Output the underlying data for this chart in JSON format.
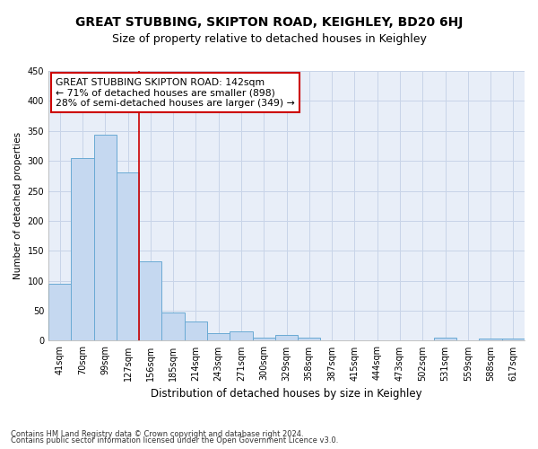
{
  "title": "GREAT STUBBING, SKIPTON ROAD, KEIGHLEY, BD20 6HJ",
  "subtitle": "Size of property relative to detached houses in Keighley",
  "xlabel": "Distribution of detached houses by size in Keighley",
  "ylabel": "Number of detached properties",
  "footer_line1": "Contains HM Land Registry data © Crown copyright and database right 2024.",
  "footer_line2": "Contains public sector information licensed under the Open Government Licence v3.0.",
  "bar_labels": [
    "41sqm",
    "70sqm",
    "99sqm",
    "127sqm",
    "156sqm",
    "185sqm",
    "214sqm",
    "243sqm",
    "271sqm",
    "300sqm",
    "329sqm",
    "358sqm",
    "387sqm",
    "415sqm",
    "444sqm",
    "473sqm",
    "502sqm",
    "531sqm",
    "559sqm",
    "588sqm",
    "617sqm"
  ],
  "bar_values": [
    95,
    305,
    343,
    280,
    133,
    47,
    32,
    13,
    16,
    5,
    9,
    5,
    0,
    0,
    0,
    0,
    0,
    5,
    0,
    4,
    4
  ],
  "bar_color": "#c5d8f0",
  "bar_edge_color": "#6aaad4",
  "grid_color": "#c8d4e8",
  "bg_color": "#e8eef8",
  "red_line_x": 3.5,
  "annotation_text": "GREAT STUBBING SKIPTON ROAD: 142sqm\n← 71% of detached houses are smaller (898)\n28% of semi-detached houses are larger (349) →",
  "annotation_box_color": "#ffffff",
  "annotation_box_edge": "#cc0000",
  "ylim": [
    0,
    450
  ],
  "yticks": [
    0,
    50,
    100,
    150,
    200,
    250,
    300,
    350,
    400,
    450
  ],
  "title_fontsize": 10,
  "subtitle_fontsize": 9
}
